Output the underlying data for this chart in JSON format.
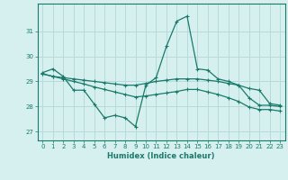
{
  "xlabel": "Humidex (Indice chaleur)",
  "background_color": "#d6f0f0",
  "grid_color": "#b8dada",
  "line_color": "#1a7a6a",
  "xlim": [
    -0.5,
    23.5
  ],
  "ylim": [
    26.65,
    32.1
  ],
  "yticks": [
    27,
    28,
    29,
    30,
    31
  ],
  "xticks": [
    0,
    1,
    2,
    3,
    4,
    5,
    6,
    7,
    8,
    9,
    10,
    11,
    12,
    13,
    14,
    15,
    16,
    17,
    18,
    19,
    20,
    21,
    22,
    23
  ],
  "line1_x": [
    0,
    1,
    2,
    3,
    4,
    5,
    6,
    7,
    8,
    9,
    10,
    11,
    12,
    13,
    14,
    15,
    16,
    17,
    18,
    19,
    20,
    21,
    22,
    23
  ],
  "line1_y": [
    29.35,
    29.5,
    29.2,
    28.65,
    28.65,
    28.1,
    27.55,
    27.65,
    27.55,
    27.2,
    28.85,
    29.15,
    30.4,
    31.4,
    31.6,
    29.5,
    29.45,
    29.1,
    29.0,
    28.85,
    28.35,
    28.05,
    28.05,
    28.0
  ],
  "line2_x": [
    0,
    1,
    2,
    3,
    4,
    5,
    6,
    7,
    8,
    9,
    10,
    11,
    12,
    13,
    14,
    15,
    16,
    17,
    18,
    19,
    20,
    21,
    22,
    23
  ],
  "line2_y": [
    29.3,
    29.2,
    29.15,
    29.1,
    29.05,
    29.0,
    28.95,
    28.9,
    28.85,
    28.85,
    28.92,
    29.0,
    29.05,
    29.1,
    29.1,
    29.1,
    29.05,
    29.0,
    28.92,
    28.85,
    28.72,
    28.65,
    28.12,
    28.05
  ],
  "line3_x": [
    0,
    1,
    2,
    3,
    4,
    5,
    6,
    7,
    8,
    9,
    10,
    11,
    12,
    13,
    14,
    15,
    16,
    17,
    18,
    19,
    20,
    21,
    22,
    23
  ],
  "line3_y": [
    29.3,
    29.2,
    29.1,
    29.0,
    28.9,
    28.78,
    28.68,
    28.58,
    28.48,
    28.38,
    28.42,
    28.48,
    28.54,
    28.6,
    28.68,
    28.68,
    28.58,
    28.48,
    28.35,
    28.2,
    27.98,
    27.88,
    27.88,
    27.82
  ]
}
